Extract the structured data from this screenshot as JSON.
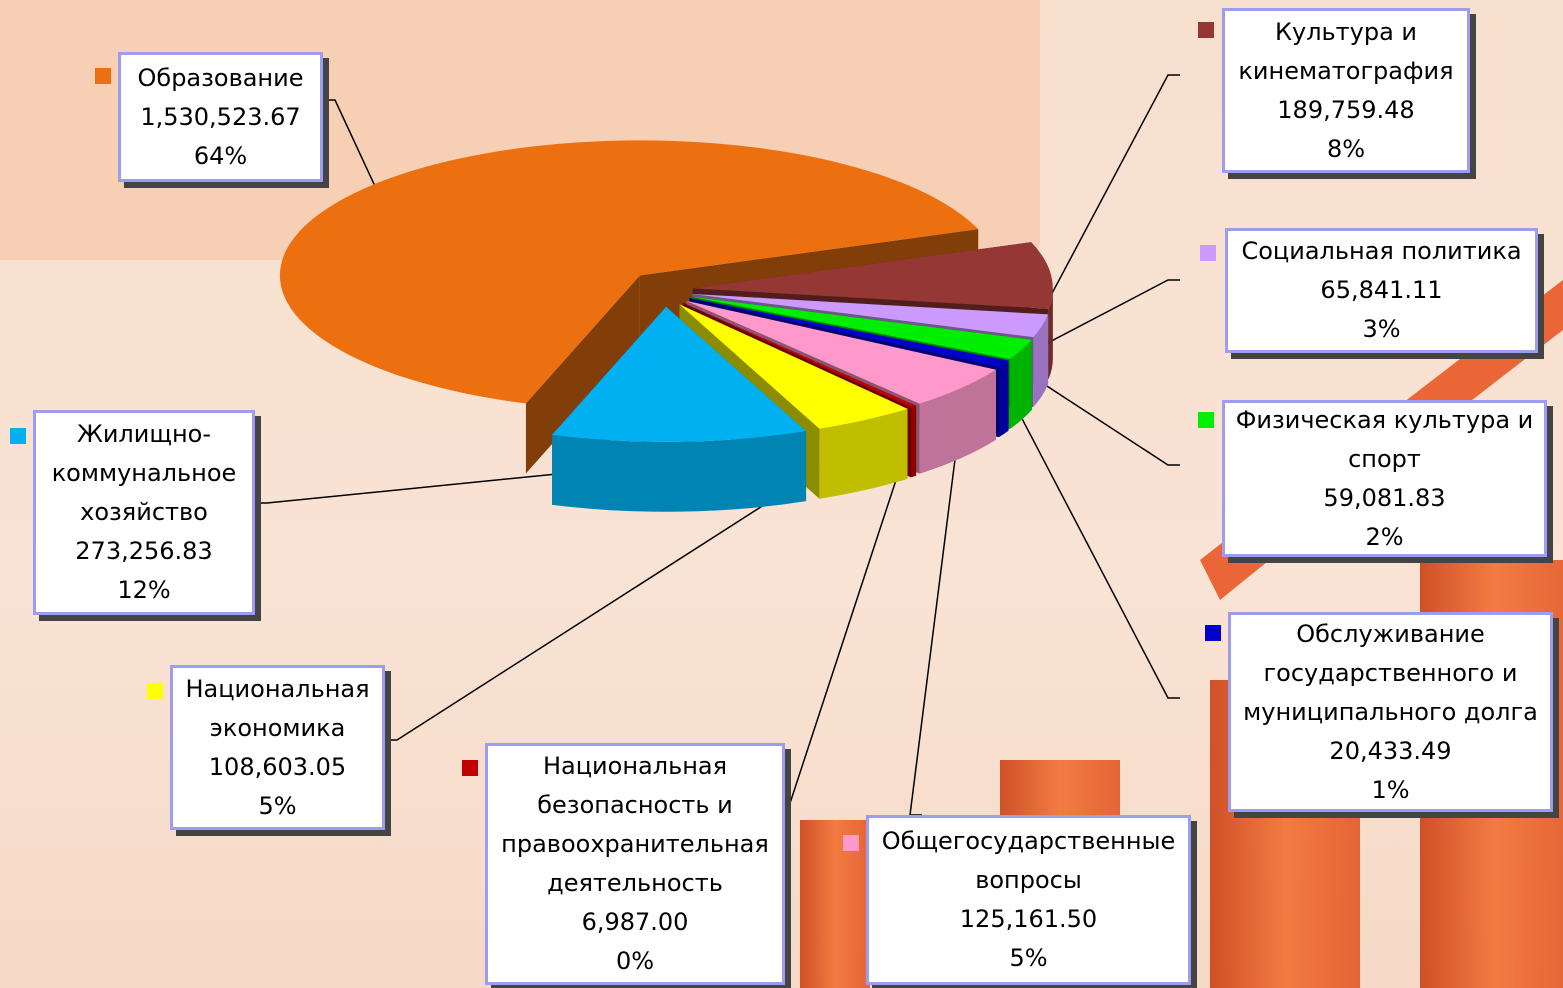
{
  "chart_data": {
    "type": "pie3d",
    "categories": [
      "Образование",
      "Культура и кинематография",
      "Социальная политика",
      "Физическая культура и спорт",
      "Обслуживание государственного и муниципального долга",
      "Общегосударственные вопросы",
      "Национальная безопасность и правоохранительная деятельность",
      "Национальная экономика",
      "Жилищно-коммунальное хозяйство"
    ],
    "values": [
      1530523.67,
      189759.48,
      65841.11,
      59081.83,
      20433.49,
      125161.5,
      6987.0,
      108603.05,
      273256.83
    ],
    "value_labels": [
      "1,530,523.67",
      "189,759.48",
      "65,841.11",
      "59,081.83",
      "20,433.49",
      "125,161.50",
      "6,987.00",
      "108,603.05",
      "273,256.83"
    ],
    "percent_labels": [
      "64%",
      "8%",
      "3%",
      "2%",
      "1%",
      "5%",
      "0%",
      "5%",
      "12%"
    ],
    "colors": [
      "#ed7010",
      "#953735",
      "#cc99ff",
      "#00ee00",
      "#0000cc",
      "#ff99cc",
      "#c00000",
      "#ffff00",
      "#00b0f0"
    ]
  }
}
